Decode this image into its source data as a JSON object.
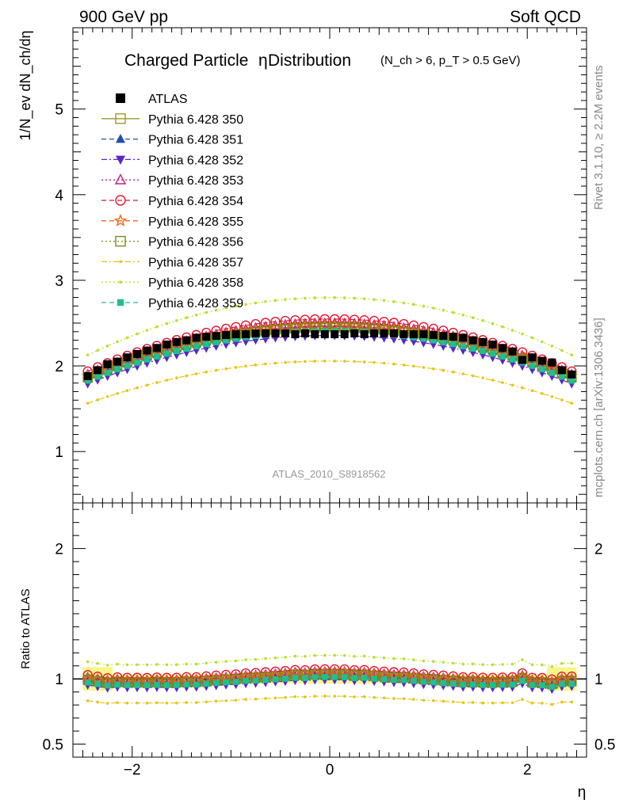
{
  "header": {
    "left": "900 GeV pp",
    "right": "Soft QCD"
  },
  "side": {
    "rivet": "Rivet 3.1.10, ≥ 2.2M events",
    "mcplots": "mcplots.cern.ch [arXiv:1306.3436]"
  },
  "chart_data": {
    "type": "line",
    "title_main": "Charged Particle",
    "title_eta": "η",
    "title_main2": " Distribution",
    "title_cond": "(N_ch > 6, p_T > 0.5 GeV)",
    "watermark": "ATLAS_2010_S8918562",
    "ylabel_top": "1/N_ev dN_ch/dη",
    "ylabel_bottom": "Ratio to ATLAS",
    "xlabel": "η",
    "xlim": [
      -2.6,
      2.6
    ],
    "ylim_top": [
      0.4,
      5.95
    ],
    "ylim_ratio": [
      0.4,
      2.35
    ],
    "xticks": [
      -2,
      0,
      2
    ],
    "xtick_labels": [
      "−2",
      "0",
      "2"
    ],
    "yticks_top": [
      1,
      2,
      3,
      4,
      5
    ],
    "yticks_ratio": [
      0.5,
      1,
      2
    ],
    "ytick_ratio_labels": [
      "0.5",
      "1",
      "2"
    ],
    "colors": {
      "350": "#9a9a2a",
      "351": "#1f4fb0",
      "352": "#5a25c8",
      "353": "#c01e8a",
      "354": "#e0142c",
      "355": "#ee6a15",
      "356": "#7c8a18",
      "357": "#e8c416",
      "358": "#b8e030",
      "359": "#1ec08c",
      "atlas": "#000000",
      "band": "#f6f68a"
    },
    "legend": [
      {
        "key": "atlas",
        "label": "ATLAS",
        "marker": "square-filled",
        "dash": "none"
      },
      {
        "key": "350",
        "label": "Pythia 6.428 350",
        "marker": "square-open",
        "dash": "solid"
      },
      {
        "key": "351",
        "label": "Pythia 6.428 351",
        "marker": "triangle-up-filled",
        "dash": "dashed"
      },
      {
        "key": "352",
        "label": "Pythia 6.428 352",
        "marker": "triangle-down-filled",
        "dash": "dashdot"
      },
      {
        "key": "353",
        "label": "Pythia 6.428 353",
        "marker": "triangle-up-open",
        "dash": "dotted"
      },
      {
        "key": "354",
        "label": "Pythia 6.428 354",
        "marker": "circle-open",
        "dash": "dashed"
      },
      {
        "key": "355",
        "label": "Pythia 6.428 355",
        "marker": "star-open",
        "dash": "dashed"
      },
      {
        "key": "356",
        "label": "Pythia 6.428 356",
        "marker": "square-open",
        "dash": "dotted"
      },
      {
        "key": "357",
        "label": "Pythia 6.428 357",
        "marker": "dot",
        "dash": "dashdot"
      },
      {
        "key": "358",
        "label": "Pythia 6.428 358",
        "marker": "dot",
        "dash": "dotted"
      },
      {
        "key": "359",
        "label": "Pythia 6.428 359",
        "marker": "square-filled-small",
        "dash": "dashed"
      }
    ],
    "eta": [
      -2.45,
      -2.35,
      -2.25,
      -2.15,
      -2.05,
      -1.95,
      -1.85,
      -1.75,
      -1.65,
      -1.55,
      -1.45,
      -1.35,
      -1.25,
      -1.15,
      -1.05,
      -0.95,
      -0.85,
      -0.75,
      -0.65,
      -0.55,
      -0.45,
      -0.35,
      -0.25,
      -0.15,
      -0.05,
      0.05,
      0.15,
      0.25,
      0.35,
      0.45,
      0.55,
      0.65,
      0.75,
      0.85,
      0.95,
      1.05,
      1.15,
      1.25,
      1.35,
      1.45,
      1.55,
      1.65,
      1.75,
      1.85,
      1.95,
      2.05,
      2.15,
      2.25,
      2.35,
      2.45
    ],
    "atlas": [
      1.88,
      1.95,
      2.02,
      2.05,
      2.1,
      2.14,
      2.18,
      2.21,
      2.25,
      2.28,
      2.3,
      2.33,
      2.34,
      2.35,
      2.36,
      2.37,
      2.37,
      2.38,
      2.38,
      2.38,
      2.38,
      2.37,
      2.38,
      2.37,
      2.37,
      2.37,
      2.37,
      2.38,
      2.37,
      2.38,
      2.38,
      2.38,
      2.37,
      2.37,
      2.37,
      2.36,
      2.35,
      2.34,
      2.33,
      2.3,
      2.28,
      2.25,
      2.21,
      2.17,
      2.07,
      2.1,
      2.06,
      2.04,
      1.95,
      1.9
    ],
    "series": [
      {
        "key": "350",
        "ratio": 1.03
      },
      {
        "key": "351",
        "ratio": 1.02
      },
      {
        "key": "352",
        "ratio": 0.985
      },
      {
        "key": "353",
        "ratio": 1.045
      },
      {
        "key": "354",
        "ratio": 1.065
      },
      {
        "key": "355",
        "ratio": 1.035
      },
      {
        "key": "356",
        "ratio": 1.025
      },
      {
        "key": "357",
        "ratio": 0.86
      },
      {
        "key": "358",
        "ratio": 1.17
      },
      {
        "key": "359",
        "ratio": 1.005
      }
    ]
  }
}
